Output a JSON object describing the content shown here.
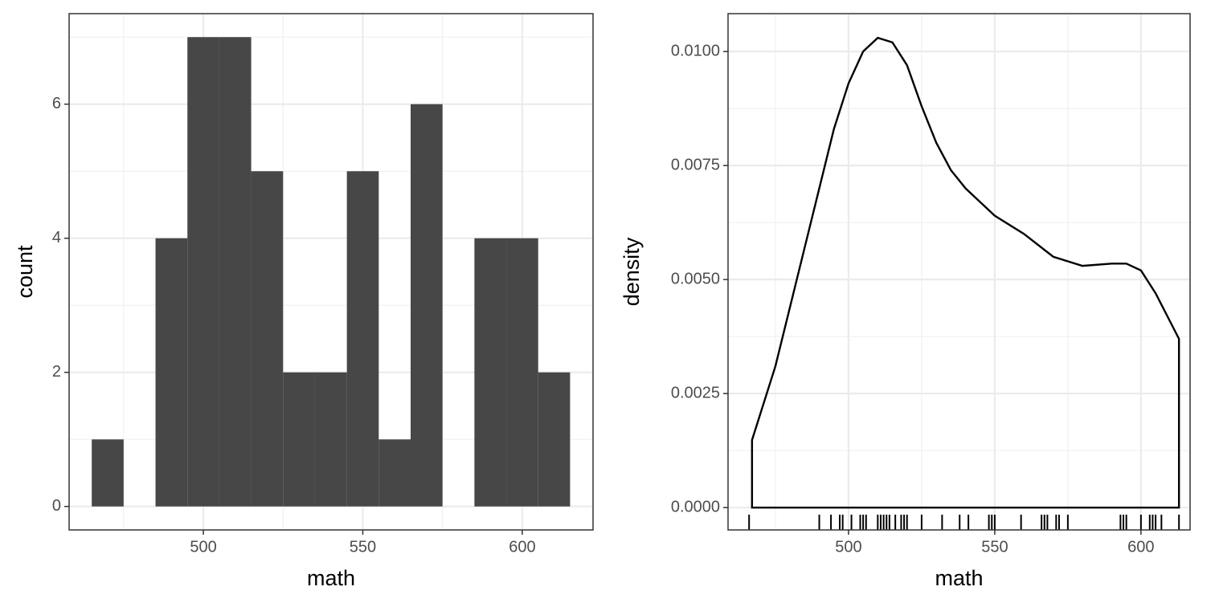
{
  "chart_data": [
    {
      "type": "histogram",
      "x_label": "math",
      "y_label": "count",
      "bins": [
        465,
        475,
        485,
        495,
        505,
        515,
        525,
        535,
        545,
        555,
        565,
        575,
        585,
        595,
        605,
        615
      ],
      "values": [
        1,
        0,
        4,
        7,
        7,
        5,
        2,
        2,
        5,
        1,
        6,
        0,
        4,
        4,
        2
      ],
      "color": "#474747",
      "xlim": [
        457.9,
        622.2
      ],
      "ylim": [
        -0.35,
        7.35
      ],
      "xticks": [
        500,
        550,
        600
      ],
      "yticks": [
        0,
        2,
        4,
        6
      ],
      "grid": true
    },
    {
      "type": "density",
      "x_label": "math",
      "y_label": "density",
      "x": [
        467,
        475,
        485,
        495,
        500,
        505,
        510,
        515,
        520,
        525,
        530,
        535,
        540,
        545,
        550,
        560,
        570,
        580,
        590,
        595,
        600,
        605,
        613
      ],
      "values": [
        0.00148,
        0.0031,
        0.0057,
        0.0083,
        0.0093,
        0.01,
        0.0103,
        0.0102,
        0.0097,
        0.0088,
        0.008,
        0.0074,
        0.007,
        0.0067,
        0.0064,
        0.006,
        0.0055,
        0.0053,
        0.00535,
        0.00535,
        0.0052,
        0.0047,
        0.0037
      ],
      "rug": [
        466,
        490,
        494,
        497,
        498,
        501,
        504,
        505,
        506,
        510,
        511,
        512,
        513,
        514,
        516,
        518,
        519,
        520,
        525,
        532,
        538,
        541,
        548,
        549,
        550,
        559,
        566,
        567,
        568,
        571,
        572,
        575,
        593,
        594,
        595,
        600,
        603,
        604,
        605,
        607,
        613
      ],
      "color": "#000000",
      "xlim": [
        458.8,
        616.8
      ],
      "ylim": [
        -0.00049,
        0.01083
      ],
      "xticks": [
        500,
        550,
        600
      ],
      "yticks": [
        {
          "value": 0,
          "label": "0.0000"
        },
        {
          "value": 0.0025,
          "label": "0.0025"
        },
        {
          "value": 0.005,
          "label": "0.0050"
        },
        {
          "value": 0.0075,
          "label": "0.0075"
        },
        {
          "value": 0.01,
          "label": "0.0100"
        }
      ],
      "grid": true
    }
  ]
}
